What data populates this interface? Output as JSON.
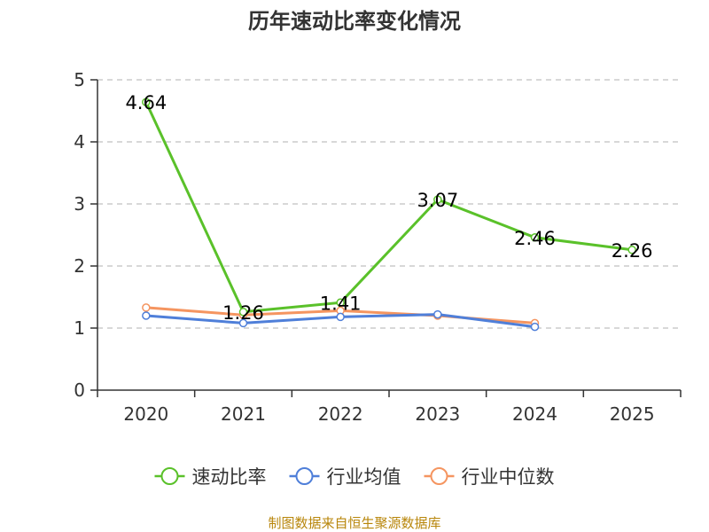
{
  "title": "历年速动比率变化情况",
  "source": "制图数据来自恒生聚源数据库",
  "chart_data": {
    "type": "line",
    "title": "历年速动比率变化情况",
    "categories": [
      "2020",
      "2021",
      "2022",
      "2023",
      "2024",
      "2025"
    ],
    "ylim": [
      0,
      5
    ],
    "yticks": [
      0,
      1,
      2,
      3,
      4,
      5
    ],
    "grid": true,
    "legend_position": "bottom",
    "series": [
      {
        "name": "速动比率",
        "color": "#5ac12a",
        "show_labels": true,
        "values": [
          4.64,
          1.26,
          1.41,
          3.07,
          2.46,
          2.26
        ]
      },
      {
        "name": "行业均值",
        "color": "#4f7fd9",
        "show_labels": false,
        "values": [
          1.2,
          1.08,
          1.18,
          1.22,
          1.02,
          null
        ]
      },
      {
        "name": "行业中位数",
        "color": "#f59560",
        "show_labels": false,
        "values": [
          1.33,
          1.21,
          1.28,
          1.2,
          1.08,
          null
        ]
      }
    ]
  }
}
